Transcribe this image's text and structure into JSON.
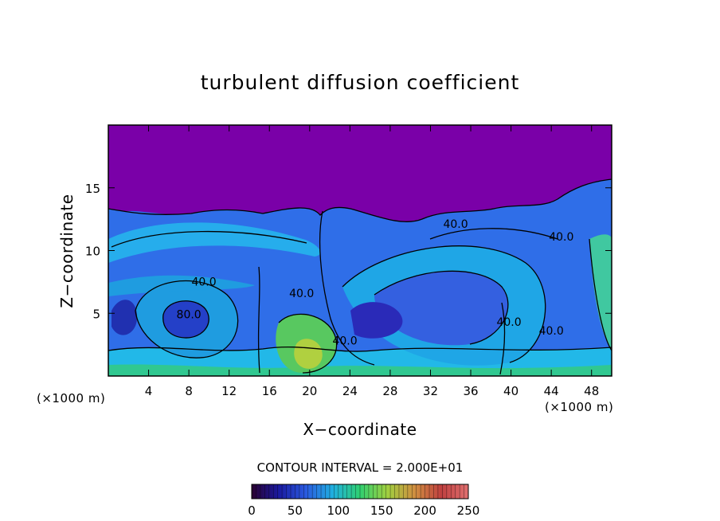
{
  "chart_data": {
    "type": "heatmap",
    "title": "turbulent diffusion coefficient",
    "xlabel": "X−coordinate",
    "ylabel": "Z−coordinate",
    "x_unit_left": "(×1000 m)",
    "x_unit_right": "(×1000 m)",
    "xlim": [
      0,
      50
    ],
    "ylim": [
      0,
      20
    ],
    "x_ticks": [
      4,
      8,
      12,
      16,
      20,
      24,
      28,
      32,
      36,
      40,
      44,
      48
    ],
    "y_ticks": [
      5,
      10,
      15
    ],
    "contour_interval_label": "CONTOUR INTERVAL = 2.000E+01",
    "colorbar": {
      "range": [
        0,
        250
      ],
      "ticks": [
        0,
        50,
        100,
        150,
        200,
        250
      ],
      "stops": [
        "#2a0030",
        "#1a1aa0",
        "#2a5ae0",
        "#20b0e0",
        "#30d070",
        "#a0d040",
        "#d09040",
        "#c04040",
        "#e07070"
      ]
    },
    "contour_labels": [
      {
        "text": "40.0",
        "x": 19.2,
        "z": 6.3
      },
      {
        "text": "80.0",
        "x": 8.0,
        "z": 4.6
      },
      {
        "text": "40.0",
        "x": 9.5,
        "z": 7.2
      },
      {
        "text": "40.0",
        "x": 34.5,
        "z": 11.8
      },
      {
        "text": "40.0",
        "x": 45.0,
        "z": 10.8
      },
      {
        "text": "40.0",
        "x": 39.8,
        "z": 4.0
      },
      {
        "text": "40.0",
        "x": 44.0,
        "z": 3.3
      },
      {
        "text": "40.0",
        "x": 23.5,
        "z": 2.5
      }
    ],
    "colors": {
      "background_upper": "#7a00a8",
      "field_base": "#2f6ee8",
      "plot_frame": "#000000"
    }
  }
}
